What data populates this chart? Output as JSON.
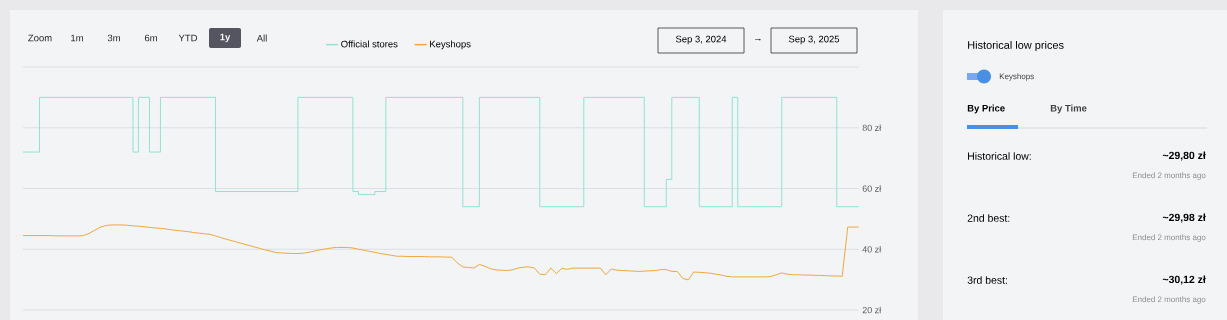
{
  "chart_data": [
    {
      "type": "line",
      "categories": [
        null,
        null,
        null,
        null,
        null,
        null,
        null,
        null,
        null,
        null,
        null,
        null,
        null,
        null,
        null,
        null,
        null,
        null,
        null,
        null,
        null,
        null,
        null,
        null,
        null,
        null,
        null,
        null,
        null,
        null,
        null,
        null,
        null,
        null,
        null,
        null,
        null,
        null,
        null,
        null,
        null,
        null,
        null,
        null,
        null,
        null,
        null,
        null,
        null,
        null,
        null,
        null,
        null,
        null,
        null,
        null,
        null,
        null,
        null,
        null,
        null,
        null,
        null,
        null,
        null,
        null,
        null,
        null,
        null,
        null,
        null,
        null,
        null,
        null,
        null,
        null,
        null,
        null,
        null,
        null,
        null,
        null,
        null,
        null,
        null,
        null,
        null,
        null,
        null,
        null,
        null,
        null,
        null,
        null,
        null,
        null,
        null,
        null,
        null,
        null,
        null,
        null,
        null,
        null,
        null,
        null,
        null,
        null,
        null,
        null,
        null,
        null,
        null,
        null,
        null,
        null,
        null,
        null,
        null,
        null,
        null,
        null,
        null,
        null,
        null,
        null,
        null,
        null,
        null,
        null,
        null,
        null,
        null,
        null,
        null,
        null,
        null,
        null,
        null,
        null,
        null,
        null,
        null,
        null,
        null,
        null,
        null,
        null,
        null,
        null,
        null,
        null,
        null
      ],
      "ylim": [
        20,
        100
      ],
      "yticks": [
        {
          "value": 20,
          "label": "20 zł"
        },
        {
          "value": 40,
          "label": "40 zł"
        },
        {
          "value": 60,
          "label": "60 zł"
        },
        {
          "value": 80,
          "label": "80 zł"
        },
        {
          "value": 100,
          "label": null
        }
      ],
      "tick_labels": "y",
      "grid": "y",
      "legend": "top",
      "marker": "none",
      "line_style": "solid",
      "series": [
        {
          "name": "Official stores",
          "type": "step",
          "color": "#8fe3d3",
          "values": [
            72,
            72,
            72,
            90,
            90,
            90,
            90,
            90,
            90,
            90,
            90,
            90,
            90,
            90,
            90,
            90,
            90,
            90,
            90,
            90,
            72,
            90,
            90,
            72,
            72,
            90,
            90,
            90,
            90,
            90,
            90,
            90,
            90,
            90,
            90,
            59,
            59,
            59,
            59,
            59,
            59,
            59,
            59,
            59,
            59,
            59,
            59,
            59,
            59,
            59,
            90,
            90,
            90,
            90,
            90,
            90,
            90,
            90,
            90,
            90,
            59,
            58,
            58,
            58,
            59,
            59,
            90,
            90,
            90,
            90,
            90,
            90,
            90,
            90,
            90,
            90,
            90,
            90,
            90,
            90,
            54,
            54,
            54,
            90,
            90,
            90,
            90,
            90,
            90,
            90,
            90,
            90,
            90,
            90,
            54,
            54,
            54,
            54,
            54,
            54,
            54,
            54,
            90,
            90,
            90,
            90,
            90,
            90,
            90,
            90,
            90,
            90,
            90,
            54,
            54,
            54,
            54,
            63,
            90,
            90,
            90,
            90,
            90,
            54,
            54,
            54,
            54,
            54,
            54,
            90,
            54,
            54,
            54,
            54,
            54,
            54,
            54,
            54,
            90,
            90,
            90,
            90,
            90,
            90,
            90,
            90,
            90,
            90,
            54,
            54,
            54,
            54,
            54
          ]
        },
        {
          "name": "Keyshops",
          "type": "line",
          "color": "#f0a83c",
          "values": [
            44.5,
            44.5,
            44.5,
            44.5,
            44.5,
            44.5,
            44.4,
            44.4,
            44.4,
            44.4,
            44.4,
            44.5,
            45.2,
            46.2,
            47.2,
            47.8,
            48.0,
            48.0,
            48.0,
            47.9,
            47.7,
            47.6,
            47.4,
            47.2,
            47.0,
            46.9,
            46.7,
            46.4,
            46.2,
            46.0,
            45.8,
            45.5,
            45.3,
            45.1,
            44.9,
            44.4,
            43.8,
            43.3,
            42.8,
            42.3,
            41.8,
            41.3,
            40.8,
            40.3,
            39.8,
            39.4,
            38.9,
            38.8,
            38.7,
            38.6,
            38.6,
            38.7,
            39.0,
            39.4,
            39.8,
            40.1,
            40.4,
            40.6,
            40.6,
            40.6,
            40.4,
            40.0,
            39.7,
            39.3,
            39.0,
            38.6,
            38.3,
            38.0,
            37.7,
            37.7,
            37.6,
            37.6,
            37.6,
            37.6,
            37.5,
            37.5,
            37.5,
            37.4,
            37.4,
            35.5,
            34.2,
            34.0,
            33.8,
            35.0,
            34.4,
            33.6,
            33.2,
            33.1,
            33.0,
            33.2,
            33.8,
            34.1,
            34.2,
            33.8,
            31.8,
            31.6,
            33.8,
            32.0,
            33.7,
            33.4,
            33.8,
            33.8,
            33.8,
            33.8,
            33.8,
            33.8,
            31.6,
            33.5,
            33.1,
            33.0,
            32.9,
            32.8,
            32.7,
            32.8,
            32.9,
            33.0,
            33.3,
            33.3,
            32.7,
            32.7,
            30.4,
            29.9,
            32.5,
            32.4,
            32.3,
            32.1,
            31.8,
            31.5,
            31.1,
            30.9,
            30.9,
            30.9,
            30.9,
            30.9,
            30.9,
            30.9,
            31.0,
            31.6,
            32.2,
            31.8,
            31.6,
            31.6,
            31.5,
            31.5,
            31.4,
            31.4,
            31.3,
            31.2,
            31.2,
            31.1,
            47.3,
            47.3,
            47.3
          ]
        }
      ],
      "annotations": [
        "Zoom",
        "1m",
        "3m",
        "6m",
        "YTD",
        "1y",
        "All",
        "Sep 3, 2024",
        "→",
        "Sep 3, 2025"
      ]
    },
    {
      "type": "other",
      "title": "Historical low prices",
      "annotations": [
        "Keyshops",
        "By Price",
        "By Time",
        "Historical low:",
        "~29,80 zł",
        "Ended 2 months ago",
        "2nd best:",
        "~29,98 zł",
        "Ended 2 months ago",
        "3rd best:",
        "~30,12 zł",
        "Ended 2 months ago"
      ]
    }
  ]
}
